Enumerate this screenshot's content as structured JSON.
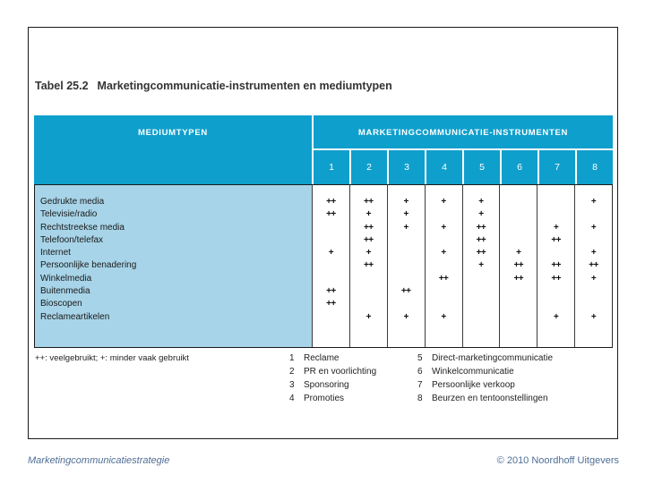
{
  "slide": {
    "table_number": "Tabel 25.2",
    "table_title": "Marketingcommunicatie-instrumenten en mediumtypen"
  },
  "table": {
    "left_header": "MEDIUMTYPEN",
    "right_header": "MARKETINGCOMMUNICATIE-INSTRUMENTEN",
    "instrument_numbers": [
      "1",
      "2",
      "3",
      "4",
      "5",
      "6",
      "7",
      "8"
    ],
    "rating_symbols": {
      "often_used": "++",
      "less_often_used": "+"
    },
    "rows": [
      {
        "label": "Gedrukte media",
        "values": [
          "++",
          "++",
          "+",
          "+",
          "+",
          "",
          "",
          "+"
        ]
      },
      {
        "label": "Televisie/radio",
        "values": [
          "++",
          "+",
          "+",
          "",
          "+",
          "",
          "",
          ""
        ]
      },
      {
        "label": "Rechtstreekse media",
        "values": [
          "",
          "++",
          "+",
          "+",
          "++",
          "",
          "+",
          "+"
        ]
      },
      {
        "label": "Telefoon/telefax",
        "values": [
          "",
          "++",
          "",
          "",
          "++",
          "",
          "++",
          ""
        ]
      },
      {
        "label": "Internet",
        "values": [
          "+",
          "+",
          "",
          "+",
          "++",
          "+",
          "",
          "+"
        ]
      },
      {
        "label": "Persoonlijke benadering",
        "values": [
          "",
          "++",
          "",
          "",
          "+",
          "++",
          "++",
          "++"
        ]
      },
      {
        "label": "Winkelmedia",
        "values": [
          "",
          "",
          "",
          "++",
          "",
          "++",
          "++",
          "+"
        ]
      },
      {
        "label": "Buitenmedia",
        "values": [
          "++",
          "",
          "++",
          "",
          "",
          "",
          "",
          ""
        ]
      },
      {
        "label": "Bioscopen",
        "values": [
          "++",
          "",
          "",
          "",
          "",
          "",
          "",
          ""
        ]
      },
      {
        "label": "Reclameartikelen",
        "values": [
          "",
          "+",
          "+",
          "+",
          "",
          "",
          "+",
          "+"
        ]
      }
    ]
  },
  "footnote": "++: veelgebruikt; +: minder vaak gebruikt",
  "legend": {
    "col1": [
      {
        "num": "1",
        "label": "Reclame"
      },
      {
        "num": "2",
        "label": "PR en voorlichting"
      },
      {
        "num": "3",
        "label": "Sponsoring"
      },
      {
        "num": "4",
        "label": "Promoties"
      }
    ],
    "col2": [
      {
        "num": "5",
        "label": "Direct-marketingcommunicatie"
      },
      {
        "num": "6",
        "label": "Winkelcommunicatie"
      },
      {
        "num": "7",
        "label": "Persoonlijke verkoop"
      },
      {
        "num": "8",
        "label": "Beurzen en tentoonstellingen"
      }
    ]
  },
  "footer": {
    "left": "Marketingcommunicatiestrategie",
    "right": "© 2010 Noordhoff Uitgevers"
  },
  "colors": {
    "header_cyan": "#0f9fcc",
    "row_light_blue": "#a7d4e8"
  }
}
